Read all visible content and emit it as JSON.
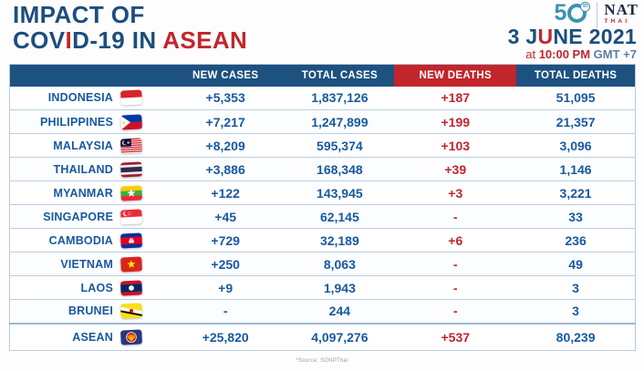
{
  "colors": {
    "navy": "#1d4e7e",
    "red": "#c2252c",
    "cell_blue": "#17599f",
    "header_bar_blue": "#1d5180",
    "header_bar_red": "#c2252c",
    "logo_teal": "#3a93b5"
  },
  "header": {
    "title_line1": [
      {
        "t": "IMPACT OF"
      }
    ],
    "title_line2": [
      {
        "t": "COV"
      },
      {
        "t": "I"
      },
      {
        "t": "D-19 IN "
      },
      {
        "t": "ASEAN"
      }
    ],
    "logo": {
      "number": "5",
      "suffix": "th",
      "name_top": "NAT",
      "name_bottom": "THAI"
    },
    "date_parts": [
      {
        "t": "3 J"
      },
      {
        "t": "U"
      },
      {
        "t": "NE 2021"
      }
    ],
    "time_parts": [
      {
        "t": "at "
      },
      {
        "t": "10:00 PM"
      },
      {
        "t": " GMT +7"
      }
    ]
  },
  "chart_data": {
    "type": "table",
    "title": "IMPACT OF COVID-19 IN ASEAN",
    "date": "3 JUNE 2021",
    "time": "at 10:00 PM GMT +7",
    "columns": [
      "NEW CASES",
      "TOTAL CASES",
      "NEW DEATHS",
      "TOTAL DEATHS"
    ],
    "rows": [
      {
        "country": "INDONESIA",
        "flag": "indonesia",
        "new_cases": "+5,353",
        "total_cases": "1,837,126",
        "new_deaths": "+187",
        "total_deaths": "51,095"
      },
      {
        "country": "PHILIPPINES",
        "flag": "philippines",
        "new_cases": "+7,217",
        "total_cases": "1,247,899",
        "new_deaths": "+199",
        "total_deaths": "21,357"
      },
      {
        "country": "MALAYSIA",
        "flag": "malaysia",
        "new_cases": "+8,209",
        "total_cases": "595,374",
        "new_deaths": "+103",
        "total_deaths": "3,096"
      },
      {
        "country": "THAILAND",
        "flag": "thailand",
        "new_cases": "+3,886",
        "total_cases": "168,348",
        "new_deaths": "+39",
        "total_deaths": "1,146"
      },
      {
        "country": "MYANMAR",
        "flag": "myanmar",
        "new_cases": "+122",
        "total_cases": "143,945",
        "new_deaths": "+3",
        "total_deaths": "3,221"
      },
      {
        "country": "SINGAPORE",
        "flag": "singapore",
        "new_cases": "+45",
        "total_cases": "62,145",
        "new_deaths": "-",
        "total_deaths": "33"
      },
      {
        "country": "CAMBODIA",
        "flag": "cambodia",
        "new_cases": "+729",
        "total_cases": "32,189",
        "new_deaths": "+6",
        "total_deaths": "236"
      },
      {
        "country": "VIETNAM",
        "flag": "vietnam",
        "new_cases": "+250",
        "total_cases": "8,063",
        "new_deaths": "-",
        "total_deaths": "49"
      },
      {
        "country": "LAOS",
        "flag": "laos",
        "new_cases": "+9",
        "total_cases": "1,943",
        "new_deaths": "-",
        "total_deaths": "3"
      },
      {
        "country": "BRUNEI",
        "flag": "brunei",
        "new_cases": "-",
        "total_cases": "244",
        "new_deaths": "-",
        "total_deaths": "3"
      },
      {
        "country": "ASEAN",
        "flag": "asean",
        "new_cases": "+25,820",
        "total_cases": "4,097,276",
        "new_deaths": "+537",
        "total_deaths": "80,239",
        "is_total": true
      }
    ]
  },
  "footer": {
    "source": "*Source: SONPThai"
  }
}
